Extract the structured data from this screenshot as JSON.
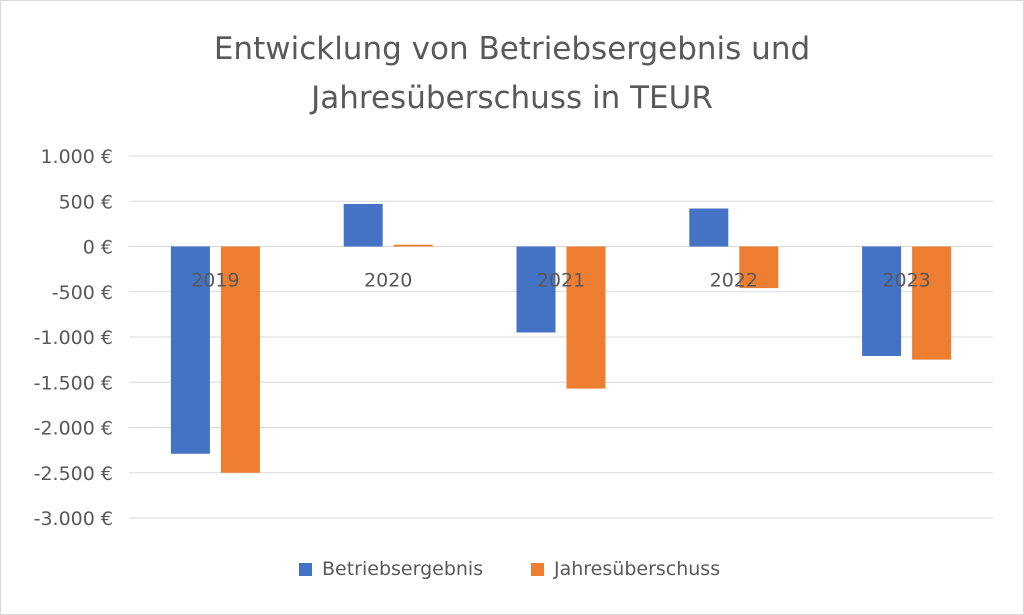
{
  "chart_data": {
    "type": "bar",
    "title_lines": [
      "Entwicklung von Betriebsergebnis und",
      "Jahresüberschuss in TEUR"
    ],
    "categories": [
      "2019",
      "2020",
      "2021",
      "2022",
      "2023"
    ],
    "series": [
      {
        "name": "Betriebsergebnis",
        "color": "#4472c4",
        "values": [
          -2290,
          470,
          -950,
          420,
          -1210
        ]
      },
      {
        "name": "Jahresüberschuss",
        "color": "#ed7d31",
        "values": [
          -2500,
          20,
          -1570,
          -460,
          -1250
        ]
      }
    ],
    "ylim": [
      -3000,
      1000
    ],
    "yticks": [
      1000,
      500,
      0,
      -500,
      -1000,
      -1500,
      -2000,
      -2500,
      -3000
    ],
    "ytick_labels": [
      "1.000 €",
      "500 €",
      "0 €",
      "-500 €",
      "-1.000 €",
      "-1.500 €",
      "-2.000 €",
      "-2.500 €",
      "-3.000 €"
    ],
    "grid": true,
    "legend_position": "bottom",
    "xlabel": "",
    "ylabel": ""
  }
}
